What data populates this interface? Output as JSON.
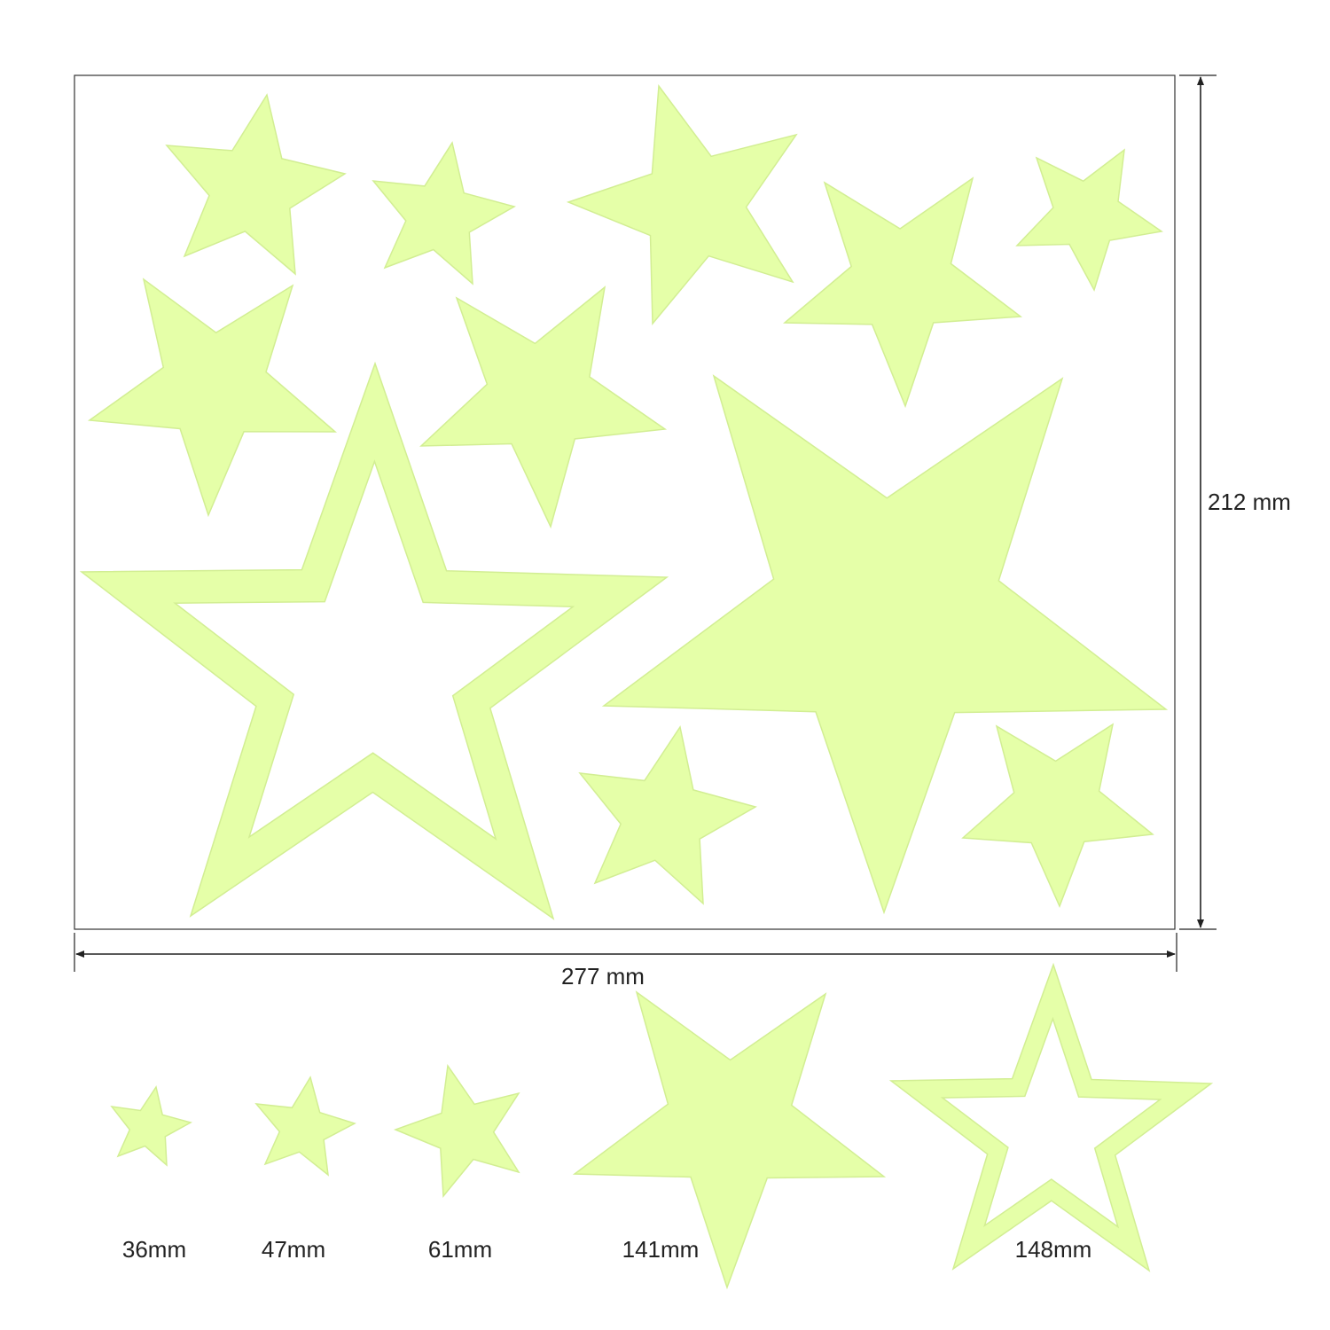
{
  "colors": {
    "star_fill": "#e5ffa8",
    "star_edge": "#d2ee93",
    "line": "#222222",
    "background": "#ffffff"
  },
  "dimensions": {
    "width_label": "277 mm",
    "height_label": "212 mm"
  },
  "size_labels": [
    "36mm",
    "47mm",
    "61mm",
    "141mm",
    "148mm"
  ]
}
